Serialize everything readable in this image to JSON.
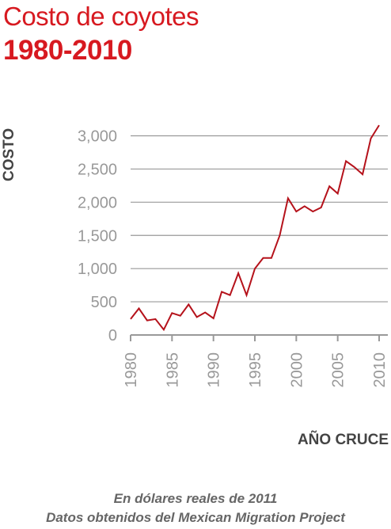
{
  "title": "Costo de coyotes",
  "subtitle": "1980-2010",
  "note": {
    "line1": "En dólares reales de 2011",
    "line2": "Datos obtenidos del Mexican Migration Project"
  },
  "colors": {
    "title": "#d71920",
    "line": "#b5121b",
    "grid": "#999999",
    "axis": "#999999"
  },
  "chart_data": {
    "type": "line",
    "title": "Costo de coyotes",
    "subtitle": "1980-2010",
    "xlabel": "AÑO CRUCE",
    "ylabel": "COSTO",
    "xlim": [
      1980,
      2010
    ],
    "ylim": [
      0,
      3000
    ],
    "x_ticks": [
      1980,
      1985,
      1990,
      1995,
      2000,
      2005,
      2010
    ],
    "y_ticks": [
      0,
      500,
      1000,
      1500,
      2000,
      2500,
      3000
    ],
    "y_tick_labels": [
      "0",
      "500",
      "1,000",
      "1,500",
      "2,000",
      "2,500",
      "3,000"
    ],
    "grid": "horizontal",
    "series": [
      {
        "x": [
          1980,
          1981,
          1982,
          1983,
          1984,
          1985,
          1986,
          1987,
          1988,
          1989,
          1990,
          1991,
          1992,
          1993,
          1994,
          1995,
          1996,
          1997,
          1998,
          1999,
          2000,
          2001,
          2002,
          2003,
          2004,
          2005,
          2006,
          2007,
          2008,
          2009,
          2010
        ],
        "values": [
          240,
          400,
          220,
          240,
          80,
          330,
          290,
          460,
          270,
          340,
          250,
          650,
          600,
          930,
          600,
          1000,
          1160,
          1160,
          1500,
          2060,
          1860,
          1940,
          1860,
          1920,
          2240,
          2130,
          2620,
          2530,
          2420,
          2960,
          3160
        ]
      }
    ]
  }
}
